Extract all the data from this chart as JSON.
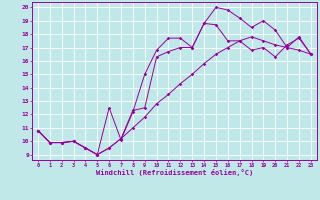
{
  "xlabel": "Windchill (Refroidissement éolien,°C)",
  "xlim": [
    -0.5,
    23.5
  ],
  "ylim": [
    8.6,
    20.4
  ],
  "xticks": [
    0,
    1,
    2,
    3,
    4,
    5,
    6,
    7,
    8,
    9,
    10,
    11,
    12,
    13,
    14,
    15,
    16,
    17,
    18,
    19,
    20,
    21,
    22,
    23
  ],
  "yticks": [
    9,
    10,
    11,
    12,
    13,
    14,
    15,
    16,
    17,
    18,
    19,
    20
  ],
  "bg_color": "#c0e8e8",
  "line_color": "#990099",
  "grid_color": "#ffffff",
  "series": [
    {
      "x": [
        0,
        1,
        2,
        3,
        4,
        5,
        6,
        7,
        8,
        9,
        10,
        11,
        12,
        13,
        14,
        15,
        16,
        17,
        18,
        19,
        20,
        21,
        22,
        23
      ],
      "y": [
        10.8,
        9.9,
        9.9,
        10.0,
        9.5,
        9.0,
        9.5,
        10.2,
        12.3,
        12.5,
        16.3,
        16.7,
        17.0,
        17.0,
        18.8,
        18.7,
        17.5,
        17.5,
        16.8,
        17.0,
        16.3,
        17.2,
        17.7,
        16.5
      ]
    },
    {
      "x": [
        0,
        1,
        2,
        3,
        4,
        5,
        6,
        7,
        8,
        9,
        10,
        11,
        12,
        13,
        14,
        15,
        16,
        17,
        18,
        19,
        20,
        21,
        22,
        23
      ],
      "y": [
        10.8,
        9.9,
        9.9,
        10.0,
        9.5,
        9.0,
        12.5,
        10.1,
        12.2,
        15.0,
        16.8,
        17.7,
        17.7,
        17.0,
        18.8,
        20.0,
        19.8,
        19.2,
        18.5,
        19.0,
        18.3,
        17.0,
        17.8,
        16.5
      ]
    },
    {
      "x": [
        0,
        1,
        2,
        3,
        4,
        5,
        6,
        7,
        8,
        9,
        10,
        11,
        12,
        13,
        14,
        15,
        16,
        17,
        18,
        19,
        20,
        21,
        22,
        23
      ],
      "y": [
        10.8,
        9.9,
        9.9,
        10.0,
        9.5,
        9.0,
        9.5,
        10.2,
        11.0,
        11.8,
        12.8,
        13.5,
        14.3,
        15.0,
        15.8,
        16.5,
        17.0,
        17.5,
        17.8,
        17.5,
        17.2,
        17.0,
        16.8,
        16.5
      ]
    }
  ]
}
